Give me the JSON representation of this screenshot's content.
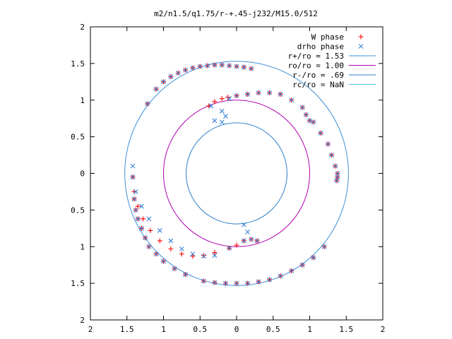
{
  "chart_data": {
    "type": "scatter",
    "title": "m2/n1.5/q1.75/r-+.45-j232/M15.0/512",
    "xlabel": "",
    "ylabel": "",
    "xlim": [
      -2,
      2
    ],
    "ylim": [
      -2,
      2
    ],
    "x_tick_values": [
      -2,
      -1.5,
      -1,
      -0.5,
      0,
      0.5,
      1,
      1.5,
      2
    ],
    "x_tick_labels": [
      "2",
      "1.5",
      "1",
      "0.5",
      "0",
      "0.5",
      "1",
      "1.5",
      "2"
    ],
    "y_tick_values": [
      2,
      1.5,
      1,
      0.5,
      0,
      -0.5,
      -1,
      -1.5,
      -2
    ],
    "y_tick_labels": [
      "2",
      "1.5",
      "1",
      "0.5",
      "0",
      "0.5",
      "1",
      "1.5",
      "2"
    ],
    "grid": false,
    "legend_position": "top-right",
    "series": [
      {
        "name": "W phase",
        "marker": "plus",
        "color": "#ff0000",
        "x": [
          -1.22,
          -1.1,
          -1.0,
          -0.9,
          -0.8,
          -0.7,
          -0.6,
          -0.5,
          -0.4,
          -0.3,
          -0.2,
          -0.1,
          0.0,
          0.1,
          0.2,
          0.95,
          1.05,
          1.15,
          1.25,
          1.3,
          1.35,
          1.38,
          1.38,
          1.37,
          -1.4,
          -1.38,
          -1.35,
          -1.3,
          -1.25,
          -1.2,
          -1.1,
          -1.0,
          -0.85,
          -0.7,
          -0.45,
          -0.3,
          -0.15,
          0.0,
          0.15,
          0.3,
          0.45,
          0.6,
          0.75,
          0.9,
          1.05,
          1.2,
          -0.38,
          -0.3,
          -0.2,
          -0.12,
          0.0,
          0.15,
          0.3,
          0.45,
          0.6,
          0.75,
          0.9,
          1.0,
          -1.42,
          -1.4,
          -1.35,
          -1.28,
          -1.18,
          -1.05,
          -0.9,
          -0.75,
          -0.6,
          -0.45,
          -0.3,
          -0.1,
          0.0,
          0.1,
          0.2,
          0.28
        ],
        "y": [
          0.95,
          1.15,
          1.25,
          1.32,
          1.37,
          1.41,
          1.44,
          1.46,
          1.47,
          1.48,
          1.48,
          1.47,
          1.46,
          1.45,
          1.43,
          0.8,
          0.7,
          0.55,
          0.4,
          0.25,
          0.1,
          0.0,
          -0.05,
          -0.1,
          -0.35,
          -0.5,
          -0.62,
          -0.75,
          -0.88,
          -1.0,
          -1.1,
          -1.2,
          -1.3,
          -1.38,
          -1.47,
          -1.49,
          -1.5,
          -1.5,
          -1.5,
          -1.48,
          -1.45,
          -1.4,
          -1.33,
          -1.25,
          -1.15,
          -1.0,
          0.92,
          0.98,
          1.02,
          1.04,
          1.06,
          1.08,
          1.1,
          1.1,
          1.08,
          1.0,
          0.9,
          0.72,
          -0.05,
          -0.25,
          -0.45,
          -0.62,
          -0.78,
          -0.92,
          -1.03,
          -1.1,
          -1.13,
          -1.12,
          -1.08,
          -1.02,
          -0.98,
          -0.92,
          -0.9,
          -0.92
        ]
      },
      {
        "name": "drho phase",
        "marker": "cross",
        "color": "#3b82d6",
        "x": [
          -1.22,
          -1.1,
          -1.0,
          -0.9,
          -0.8,
          -0.7,
          -0.6,
          -0.5,
          -0.4,
          -0.3,
          -0.2,
          -0.1,
          0.0,
          0.1,
          0.2,
          0.95,
          1.05,
          1.15,
          1.25,
          1.3,
          1.35,
          1.38,
          1.38,
          1.37,
          -1.4,
          -1.38,
          -1.35,
          -1.3,
          -1.25,
          -1.2,
          -1.1,
          -1.0,
          -0.85,
          -0.7,
          -0.45,
          -0.3,
          -0.15,
          0.0,
          0.15,
          0.3,
          0.45,
          0.6,
          0.75,
          0.9,
          1.05,
          1.2,
          -0.35,
          -0.2,
          -0.15,
          -0.3,
          -0.2,
          -0.1,
          0.0,
          0.15,
          0.3,
          0.45,
          0.6,
          0.75,
          0.9,
          1.0,
          -1.42,
          -1.42,
          -1.38,
          -1.3,
          -1.2,
          -1.05,
          -0.9,
          -0.75,
          -0.6,
          -0.45,
          -0.3,
          -0.1,
          0.1,
          0.2,
          0.28,
          0.15,
          0.1
        ],
        "y": [
          0.95,
          1.15,
          1.25,
          1.32,
          1.37,
          1.41,
          1.44,
          1.46,
          1.47,
          1.48,
          1.48,
          1.47,
          1.46,
          1.45,
          1.43,
          0.8,
          0.7,
          0.55,
          0.4,
          0.25,
          0.1,
          0.0,
          -0.05,
          -0.1,
          -0.35,
          -0.5,
          -0.62,
          -0.75,
          -0.88,
          -1.0,
          -1.1,
          -1.2,
          -1.3,
          -1.38,
          -1.47,
          -1.49,
          -1.5,
          -1.5,
          -1.5,
          -1.48,
          -1.45,
          -1.4,
          -1.33,
          -1.25,
          -1.15,
          -1.0,
          0.92,
          0.85,
          0.78,
          0.72,
          0.7,
          1.02,
          1.06,
          1.08,
          1.1,
          1.1,
          1.08,
          1.0,
          0.9,
          0.72,
          0.1,
          -0.05,
          -0.25,
          -0.45,
          -0.62,
          -0.78,
          -0.92,
          -1.03,
          -1.1,
          -1.13,
          -1.12,
          -1.02,
          -0.92,
          -0.9,
          -0.92,
          -0.8,
          -0.7
        ]
      }
    ],
    "circles": [
      {
        "name": "r+/ro = 1.53",
        "radius": 1.53,
        "color": "#3b8fd6"
      },
      {
        "name": "ro/ro = 1.00",
        "radius": 1.0,
        "color": "#b000b0"
      },
      {
        "name": "r-/ro = .69",
        "radius": 0.69,
        "color": "#2a7fc8"
      },
      {
        "name": "rc/ro = NaN",
        "radius": null,
        "color": "#40c0e0"
      }
    ]
  }
}
